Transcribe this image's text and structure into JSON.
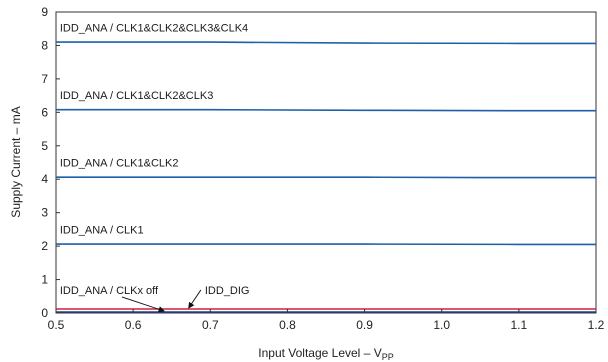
{
  "chart_data": {
    "type": "line",
    "title": "",
    "xlabel": "Input Voltage Level – V",
    "xlabel_subscript": "PP",
    "ylabel": "Supply Current – mA",
    "xlim": [
      0.5,
      1.2
    ],
    "ylim": [
      0,
      9
    ],
    "x_ticks": [
      "0.5",
      "0.6",
      "0.7",
      "0.8",
      "0.9",
      "1.0",
      "1.1",
      "1.2"
    ],
    "y_ticks": [
      "0",
      "1",
      "2",
      "3",
      "4",
      "5",
      "6",
      "7",
      "8",
      "9"
    ],
    "grid": false,
    "series": [
      {
        "name": "IDD_ANA / CLK1&CLK2&CLK3&CLK4",
        "color": "#1f5fa8",
        "x": [
          0.5,
          0.7,
          0.9,
          1.1,
          1.2
        ],
        "y": [
          8.1,
          8.1,
          8.07,
          8.06,
          8.06
        ]
      },
      {
        "name": "IDD_ANA / CLK1&CLK2&CLK3",
        "color": "#1f5fa8",
        "x": [
          0.5,
          0.7,
          0.9,
          1.1,
          1.2
        ],
        "y": [
          6.08,
          6.08,
          6.06,
          6.05,
          6.05
        ]
      },
      {
        "name": "IDD_ANA / CLK1&CLK2",
        "color": "#1f5fa8",
        "x": [
          0.5,
          0.7,
          0.9,
          1.05,
          1.2
        ],
        "y": [
          4.06,
          4.06,
          4.06,
          4.05,
          4.05
        ]
      },
      {
        "name": "IDD_ANA / CLK1",
        "color": "#1f5fa8",
        "x": [
          0.5,
          0.7,
          0.9,
          1.1,
          1.2
        ],
        "y": [
          2.06,
          2.06,
          2.06,
          2.05,
          2.05
        ]
      },
      {
        "name": "IDD_DIG",
        "color": "#d0213a",
        "x": [
          0.5,
          0.7,
          0.9,
          1.1,
          1.2
        ],
        "y": [
          0.12,
          0.12,
          0.12,
          0.12,
          0.12
        ]
      },
      {
        "name": "IDD_ANA / CLKx off",
        "color": "#1f3f8f",
        "x": [
          0.5,
          0.7,
          0.9,
          1.1,
          1.2
        ],
        "y": [
          0.03,
          0.03,
          0.03,
          0.03,
          0.03
        ]
      }
    ],
    "annotations": [
      {
        "series": "IDD_ANA / CLK1&CLK2&CLK3&CLK4",
        "text": "IDD_ANA / CLK1&CLK2&CLK3&CLK4",
        "x": 0.505,
        "y": 8.42
      },
      {
        "series": "IDD_ANA / CLK1&CLK2&CLK3",
        "text": "IDD_ANA / CLK1&CLK2&CLK3",
        "x": 0.505,
        "y": 6.4
      },
      {
        "series": "IDD_ANA / CLK1&CLK2",
        "text": "IDD_ANA / CLK1&CLK2",
        "x": 0.505,
        "y": 4.38
      },
      {
        "series": "IDD_ANA / CLK1",
        "text": "IDD_ANA / CLK1",
        "x": 0.505,
        "y": 2.38
      },
      {
        "series": "IDD_ANA / CLKx off",
        "text": "IDD_ANA / CLKx off",
        "x": 0.505,
        "y": 0.57,
        "arrow_to": [
          0.64,
          0.03
        ]
      },
      {
        "series": "IDD_DIG",
        "text": "IDD_DIG",
        "x": 0.693,
        "y": 0.57,
        "arrow_to": [
          0.672,
          0.12
        ]
      }
    ]
  }
}
